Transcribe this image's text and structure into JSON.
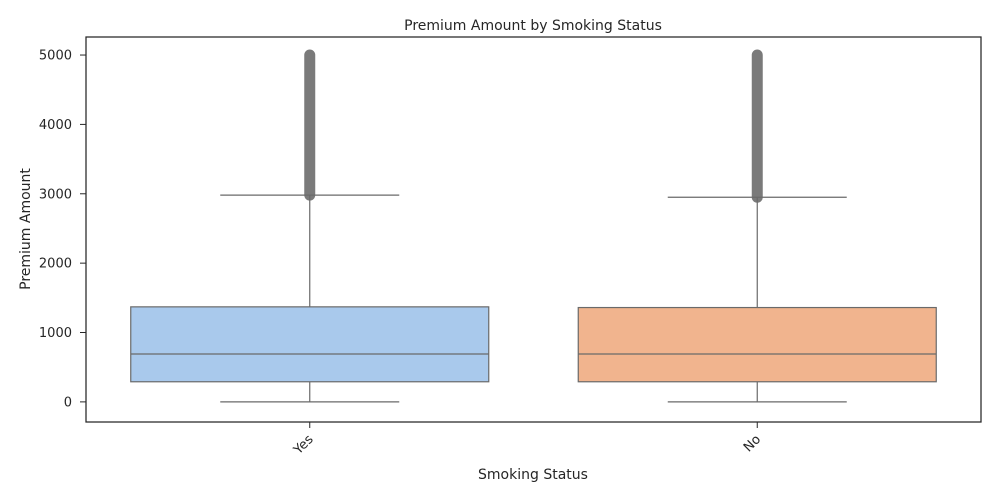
{
  "chart_data": {
    "type": "box",
    "title": "Premium Amount by Smoking Status",
    "xlabel": "Smoking Status",
    "ylabel": "Premium Amount",
    "ylim": [
      -290,
      5260
    ],
    "yticks": [
      0,
      1000,
      2000,
      3000,
      4000,
      5000
    ],
    "categories": [
      "Yes",
      "No"
    ],
    "xtick_rotation": 45,
    "grid": false,
    "legend": "none",
    "boxes": [
      {
        "category": "Yes",
        "color": "#a9c9ec",
        "min": 0,
        "q1": 290,
        "median": 690,
        "q3": 1370,
        "max": 2980,
        "outlier_range": [
          2980,
          5000
        ]
      },
      {
        "category": "No",
        "color": "#f1b48e",
        "min": 0,
        "q1": 290,
        "median": 690,
        "q3": 1360,
        "max": 2950,
        "outlier_range": [
          2950,
          5000
        ]
      }
    ],
    "line_color": "#6a6a6a",
    "outlier_color": "#7a7a7a",
    "frame_color": "#262626"
  }
}
